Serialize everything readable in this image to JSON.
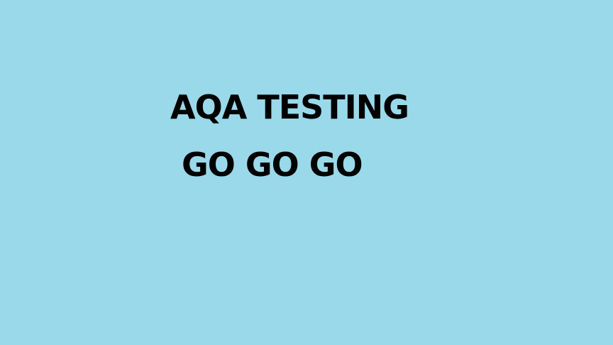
{
  "slide": {
    "background_color": "#99D9EA",
    "text_color": "#000000",
    "title_line_1": "AQA TESTING",
    "title_line_2": "GO GO GO"
  }
}
